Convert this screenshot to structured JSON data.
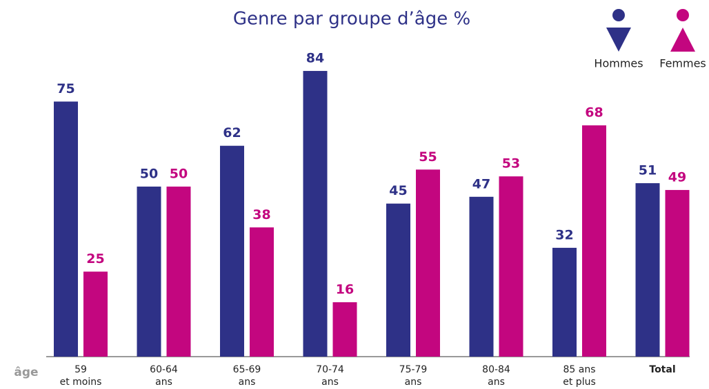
{
  "chart_data": {
    "type": "bar",
    "title": "Genre par groupe d’âge %",
    "x_label": "âge",
    "categories": [
      [
        "59",
        "et moins"
      ],
      [
        "60-64",
        "ans"
      ],
      [
        "65-69",
        "ans"
      ],
      [
        "70-74",
        "ans"
      ],
      [
        "75-79",
        "ans"
      ],
      [
        "80-84",
        "ans"
      ],
      [
        "85 ans",
        "et plus"
      ],
      [
        "Total"
      ]
    ],
    "series": [
      {
        "name": "Hommes",
        "color": "#2e3187",
        "values": [
          75,
          50,
          62,
          84,
          45,
          47,
          32,
          51
        ]
      },
      {
        "name": "Femmes",
        "color": "#c3067f",
        "values": [
          25,
          50,
          38,
          16,
          55,
          53,
          68,
          49
        ]
      }
    ]
  }
}
